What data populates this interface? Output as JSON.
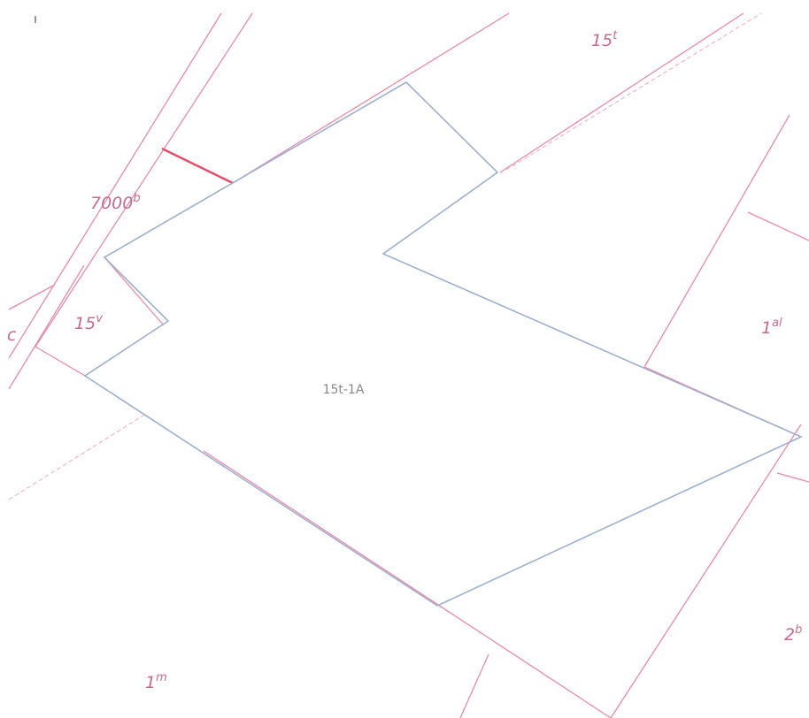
{
  "parcels": [
    {
      "base": "15",
      "sup": "t"
    },
    {
      "base": "7000",
      "sup": "b"
    },
    {
      "base": "15",
      "sup": "v"
    },
    {
      "base": "c"
    },
    {
      "base": "1",
      "sup": "al"
    },
    {
      "base": "2",
      "sup": "b"
    },
    {
      "base": "1",
      "sup": "m"
    }
  ],
  "center_label": "15t-1A"
}
